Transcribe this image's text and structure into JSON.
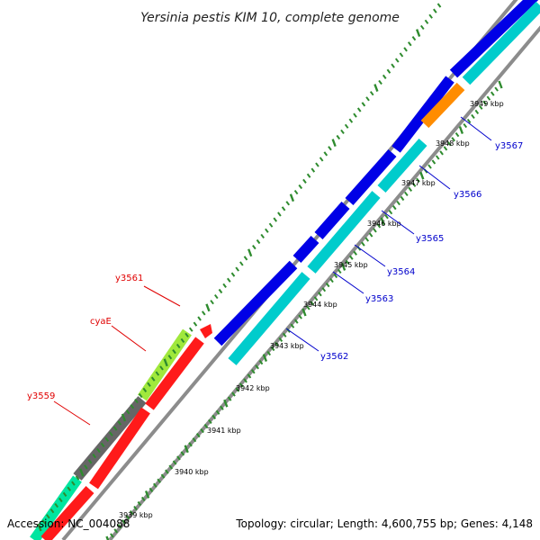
{
  "title": "Yersinia pestis KIM 10, complete genome",
  "footer": {
    "accession": "Accession: NC_004088",
    "summary": "Topology: circular; Length: 4,600,755 bp; Genes: 4,148"
  },
  "colors": {
    "backbone": "#8c8c8c",
    "tick": "#2e8b2e",
    "forward_label": "#e00000",
    "reverse_label": "#0000cc"
  },
  "ticks": [
    "3939 kbp",
    "3940 kbp",
    "3941 kbp",
    "3942 kbp",
    "3943 kbp",
    "3944 kbp",
    "3945 kbp",
    "3946 kbp",
    "3947 kbp",
    "3948 kbp",
    "3949 kbp"
  ],
  "gene_labels_left": [
    {
      "text": "y3561",
      "color": "#e00000"
    },
    {
      "text": "cyaE",
      "color": "#e00000"
    },
    {
      "text": "y3559",
      "color": "#e00000"
    }
  ],
  "gene_labels_right": [
    {
      "text": "y3567",
      "color": "#0000cc"
    },
    {
      "text": "y3566",
      "color": "#0000cc"
    },
    {
      "text": "y3565",
      "color": "#0000cc"
    },
    {
      "text": "y3564",
      "color": "#0000cc"
    },
    {
      "text": "y3563",
      "color": "#0000cc"
    },
    {
      "text": "y3562",
      "color": "#0000cc"
    }
  ],
  "features": [
    {
      "name": "y3559",
      "lane": "outer-left",
      "color": "#00e5a0"
    },
    {
      "name": "cyaE-upstream",
      "lane": "outer-left",
      "color": "#666666"
    },
    {
      "name": "cyaE",
      "lane": "outer-left",
      "color": "#a0e83c"
    },
    {
      "name": "forward-gene",
      "lane": "inner-left",
      "color": "#ff1a1a"
    },
    {
      "name": "y3562",
      "lane": "inner-right",
      "color": "#00cccc"
    },
    {
      "name": "y3567",
      "lane": "inner-right",
      "color": "#ff8c00"
    },
    {
      "name": "reverse-gene",
      "lane": "outer-right",
      "color": "#0000e6"
    }
  ]
}
